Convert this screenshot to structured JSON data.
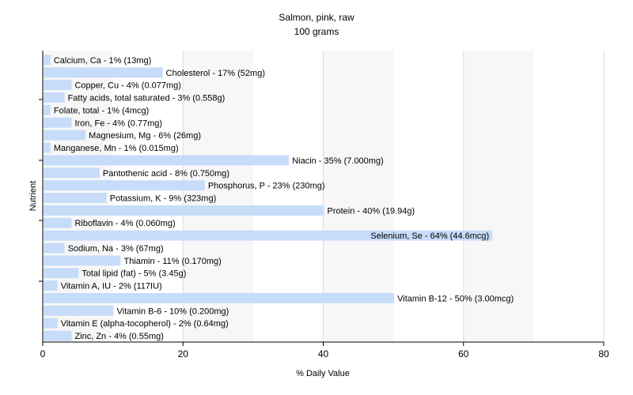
{
  "chart_data": {
    "type": "bar",
    "orientation": "horizontal",
    "title": "Salmon, pink, raw",
    "subtitle": "100 grams",
    "xlabel": "% Daily Value",
    "ylabel": "Nutrient",
    "xlim": [
      0,
      80
    ],
    "xticks": [
      0,
      20,
      40,
      60,
      80
    ],
    "grid": true,
    "bar_color": "#c6dcf9",
    "categories": [
      "Calcium, Ca",
      "Cholesterol",
      "Copper, Cu",
      "Fatty acids, total saturated",
      "Folate, total",
      "Iron, Fe",
      "Magnesium, Mg",
      "Manganese, Mn",
      "Niacin",
      "Pantothenic acid",
      "Phosphorus, P",
      "Potassium, K",
      "Protein",
      "Riboflavin",
      "Selenium, Se",
      "Sodium, Na",
      "Thiamin",
      "Total lipid (fat)",
      "Vitamin A, IU",
      "Vitamin B-12",
      "Vitamin B-6",
      "Vitamin E (alpha-tocopherol)",
      "Zinc, Zn"
    ],
    "values": [
      1,
      17,
      4,
      3,
      1,
      4,
      6,
      1,
      35,
      8,
      23,
      9,
      40,
      4,
      64,
      3,
      11,
      5,
      2,
      50,
      10,
      2,
      4
    ],
    "labels": [
      "Calcium, Ca - 1% (13mg)",
      "Cholesterol - 17% (52mg)",
      "Copper, Cu - 4% (0.077mg)",
      "Fatty acids, total saturated - 3% (0.558g)",
      "Folate, total - 1% (4mcg)",
      "Iron, Fe - 4% (0.77mg)",
      "Magnesium, Mg - 6% (26mg)",
      "Manganese, Mn - 1% (0.015mg)",
      "Niacin - 35% (7.000mg)",
      "Pantothenic acid - 8% (0.750mg)",
      "Phosphorus, P - 23% (230mg)",
      "Potassium, K - 9% (323mg)",
      "Protein - 40% (19.94g)",
      "Riboflavin - 4% (0.060mg)",
      "Selenium, Se - 64% (44.6mcg)",
      "Sodium, Na - 3% (67mg)",
      "Thiamin - 11% (0.170mg)",
      "Total lipid (fat) - 5% (3.45g)",
      "Vitamin A, IU - 2% (117IU)",
      "Vitamin B-12 - 50% (3.00mcg)",
      "Vitamin B-6 - 10% (0.200mg)",
      "Vitamin E (alpha-tocopherol) - 2% (0.64mg)",
      "Zinc, Zn - 4% (0.55mg)"
    ]
  }
}
